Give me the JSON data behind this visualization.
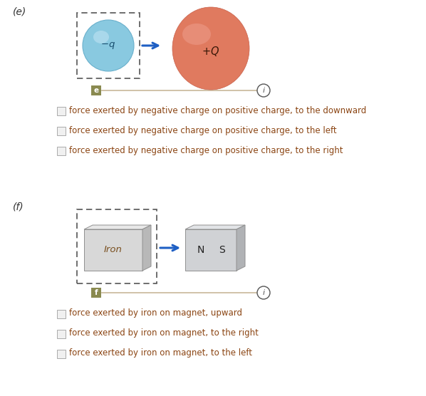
{
  "bg_color": "#ffffff",
  "label_e": "(e)",
  "label_f": "(f)",
  "neg_charge_label": "$-q$",
  "pos_charge_label": "$+Q$",
  "iron_label": "Iron",
  "magnet_n_label": "N",
  "magnet_s_label": "S",
  "e_options": [
    "force exerted by negative charge on positive charge, to the downward",
    "force exerted by negative charge on positive charge, to the left",
    "force exerted by negative charge on positive charge, to the right"
  ],
  "f_options": [
    "force exerted by iron on magnet, upward",
    "force exerted by iron on magnet, to the right",
    "force exerted by iron on magnet, to the left"
  ],
  "option_text_color": "#8B4513",
  "dashed_box_color": "#555555",
  "arrow_color": "#1e5fc4",
  "slider_badge_color": "#8a8a50",
  "slider_line_color": "#c8b89a",
  "info_circle_color": "#555555",
  "neg_charge_face": "#89c9e0",
  "neg_charge_edge": "#6ab0cc",
  "neg_charge_hi": "#b8dff0",
  "pos_charge_face": "#e07a5f",
  "pos_charge_hi": "#efa090",
  "pos_charge_dark": "#c8604a",
  "iron_face": "#d8d8d8",
  "iron_top": "#e8e8e8",
  "iron_side": "#b8b8b8",
  "magnet_face": "#d0d2d5",
  "magnet_top": "#e2e4e7",
  "magnet_side": "#b0b2b5",
  "label_color": "#333333",
  "checkbox_face": "#f0f0f0",
  "checkbox_edge": "#aaaaaa",
  "iron_text_color": "#7a5020"
}
